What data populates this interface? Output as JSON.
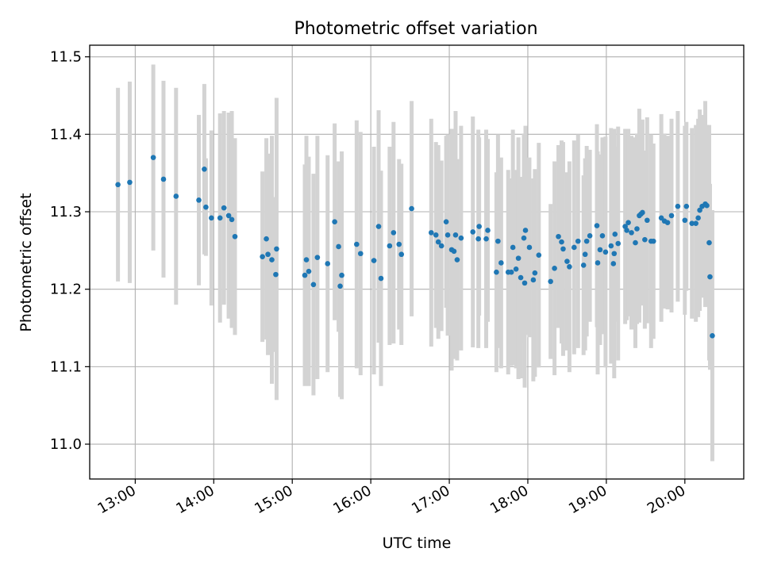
{
  "chart_data": {
    "type": "scatter",
    "title": "Photometric offset variation",
    "xlabel": "UTC time",
    "ylabel": "Photometric offset",
    "x_unit": "hours UTC",
    "xlim": [
      12.42,
      20.75
    ],
    "ylim": [
      10.955,
      11.515
    ],
    "grid": true,
    "colors": {
      "marker": "#1f77b4",
      "errorbar": "#d3d3d3",
      "grid": "#b0b0b0",
      "axis": "#000000"
    },
    "x_ticks": [
      {
        "value": 13,
        "label": "13:00"
      },
      {
        "value": 14,
        "label": "14:00"
      },
      {
        "value": 15,
        "label": "15:00"
      },
      {
        "value": 16,
        "label": "16:00"
      },
      {
        "value": 17,
        "label": "17:00"
      },
      {
        "value": 18,
        "label": "18:00"
      },
      {
        "value": 19,
        "label": "19:00"
      },
      {
        "value": 20,
        "label": "20:00"
      }
    ],
    "y_ticks": [
      {
        "value": 11.0,
        "label": "11.0"
      },
      {
        "value": 11.1,
        "label": "11.1"
      },
      {
        "value": 11.2,
        "label": "11.2"
      },
      {
        "value": 11.3,
        "label": "11.3"
      },
      {
        "value": 11.4,
        "label": "11.4"
      },
      {
        "value": 11.5,
        "label": "11.5"
      }
    ],
    "points": [
      [
        12.78,
        11.335,
        0.125
      ],
      [
        12.93,
        11.338,
        0.13
      ],
      [
        13.23,
        11.37,
        0.12
      ],
      [
        13.36,
        11.342,
        0.127
      ],
      [
        13.52,
        11.32,
        0.14
      ],
      [
        13.81,
        11.315,
        0.11
      ],
      [
        13.88,
        11.355,
        0.11
      ],
      [
        13.9,
        11.306,
        0.063
      ],
      [
        13.97,
        11.292,
        0.113
      ],
      [
        14.08,
        11.292,
        0.135
      ],
      [
        14.13,
        11.305,
        0.125
      ],
      [
        14.19,
        11.295,
        0.133
      ],
      [
        14.23,
        11.29,
        0.14
      ],
      [
        14.27,
        11.268,
        0.127
      ],
      [
        14.62,
        11.242,
        0.11
      ],
      [
        14.67,
        11.265,
        0.13
      ],
      [
        14.69,
        11.245,
        0.13
      ],
      [
        14.74,
        11.238,
        0.16
      ],
      [
        14.79,
        11.219,
        0.1
      ],
      [
        14.8,
        11.252,
        0.195
      ],
      [
        15.16,
        11.218,
        0.143
      ],
      [
        15.18,
        11.238,
        0.16
      ],
      [
        15.21,
        11.223,
        0.148
      ],
      [
        15.27,
        11.206,
        0.143
      ],
      [
        15.32,
        11.241,
        0.157
      ],
      [
        15.45,
        11.233,
        0.14
      ],
      [
        15.54,
        11.287,
        0.127
      ],
      [
        15.59,
        11.255,
        0.11
      ],
      [
        15.61,
        11.204,
        0.143
      ],
      [
        15.63,
        11.218,
        0.16
      ],
      [
        15.82,
        11.258,
        0.16
      ],
      [
        15.87,
        11.246,
        0.157
      ],
      [
        16.04,
        11.237,
        0.147
      ],
      [
        16.1,
        11.281,
        0.15
      ],
      [
        16.13,
        11.214,
        0.139
      ],
      [
        16.24,
        11.256,
        0.128
      ],
      [
        16.29,
        11.273,
        0.143
      ],
      [
        16.36,
        11.258,
        0.11
      ],
      [
        16.39,
        11.245,
        0.117
      ],
      [
        16.52,
        11.304,
        0.139
      ],
      [
        16.77,
        11.273,
        0.147
      ],
      [
        16.83,
        11.27,
        0.12
      ],
      [
        16.86,
        11.261,
        0.125
      ],
      [
        16.9,
        11.256,
        0.11
      ],
      [
        16.96,
        11.287,
        0.111
      ],
      [
        16.98,
        11.27,
        0.13
      ],
      [
        17.03,
        11.251,
        0.156
      ],
      [
        17.06,
        11.249,
        0.125
      ],
      [
        17.08,
        11.27,
        0.16
      ],
      [
        17.1,
        11.238,
        0.13
      ],
      [
        17.15,
        11.266,
        0.145
      ],
      [
        17.3,
        11.274,
        0.149
      ],
      [
        17.37,
        11.265,
        0.141
      ],
      [
        17.38,
        11.281,
        0.115
      ],
      [
        17.47,
        11.265,
        0.141
      ],
      [
        17.49,
        11.276,
        0.118
      ],
      [
        17.6,
        11.222,
        0.129
      ],
      [
        17.62,
        11.262,
        0.138
      ],
      [
        17.66,
        11.234,
        0.136
      ],
      [
        17.75,
        11.222,
        0.132
      ],
      [
        17.79,
        11.222,
        0.121
      ],
      [
        17.81,
        11.254,
        0.152
      ],
      [
        17.85,
        11.226,
        0.128
      ],
      [
        17.88,
        11.24,
        0.156
      ],
      [
        17.91,
        11.215,
        0.13
      ],
      [
        17.95,
        11.266,
        0.135
      ],
      [
        17.96,
        11.208,
        0.135
      ],
      [
        17.97,
        11.276,
        0.135
      ],
      [
        18.02,
        11.254,
        0.116
      ],
      [
        18.07,
        11.212,
        0.131
      ],
      [
        18.09,
        11.221,
        0.134
      ],
      [
        18.14,
        11.244,
        0.145
      ],
      [
        18.29,
        11.21,
        0.1
      ],
      [
        18.34,
        11.227,
        0.138
      ],
      [
        18.39,
        11.268,
        0.118
      ],
      [
        18.43,
        11.261,
        0.131
      ],
      [
        18.45,
        11.252,
        0.138
      ],
      [
        18.5,
        11.236,
        0.115
      ],
      [
        18.53,
        11.229,
        0.136
      ],
      [
        18.59,
        11.254,
        0.138
      ],
      [
        18.64,
        11.262,
        0.138
      ],
      [
        18.71,
        11.231,
        0.116
      ],
      [
        18.73,
        11.245,
        0.124
      ],
      [
        18.75,
        11.262,
        0.123
      ],
      [
        18.79,
        11.269,
        0.111
      ],
      [
        18.88,
        11.282,
        0.131
      ],
      [
        18.89,
        11.234,
        0.144
      ],
      [
        18.92,
        11.251,
        0.123
      ],
      [
        18.95,
        11.269,
        0.127
      ],
      [
        18.99,
        11.248,
        0.149
      ],
      [
        19.06,
        11.256,
        0.152
      ],
      [
        19.09,
        11.233,
        0.102
      ],
      [
        19.1,
        11.246,
        0.161
      ],
      [
        19.11,
        11.271,
        0.113
      ],
      [
        19.15,
        11.259,
        0.151
      ],
      [
        19.24,
        11.281,
        0.126
      ],
      [
        19.26,
        11.276,
        0.116
      ],
      [
        19.28,
        11.286,
        0.121
      ],
      [
        19.32,
        11.273,
        0.125
      ],
      [
        19.37,
        11.26,
        0.136
      ],
      [
        19.39,
        11.278,
        0.123
      ],
      [
        19.42,
        11.295,
        0.138
      ],
      [
        19.44,
        11.297,
        0.117
      ],
      [
        19.46,
        11.299,
        0.12
      ],
      [
        19.49,
        11.264,
        0.115
      ],
      [
        19.52,
        11.289,
        0.133
      ],
      [
        19.57,
        11.262,
        0.138
      ],
      [
        19.6,
        11.262,
        0.126
      ],
      [
        19.7,
        11.292,
        0.134
      ],
      [
        19.74,
        11.288,
        0.113
      ],
      [
        19.78,
        11.286,
        0.112
      ],
      [
        19.83,
        11.295,
        0.125
      ],
      [
        19.91,
        11.307,
        0.123
      ],
      [
        20.0,
        11.289,
        0.122
      ],
      [
        20.02,
        11.307,
        0.109
      ],
      [
        20.09,
        11.285,
        0.123
      ],
      [
        20.14,
        11.285,
        0.127
      ],
      [
        20.17,
        11.292,
        0.128
      ],
      [
        20.19,
        11.302,
        0.13
      ],
      [
        20.22,
        11.307,
        0.118
      ],
      [
        20.26,
        11.31,
        0.133
      ],
      [
        20.28,
        11.308,
        0.104
      ],
      [
        20.31,
        11.26,
        0.152
      ],
      [
        20.32,
        11.216,
        0.12
      ],
      [
        20.35,
        11.14,
        0.162
      ]
    ]
  }
}
